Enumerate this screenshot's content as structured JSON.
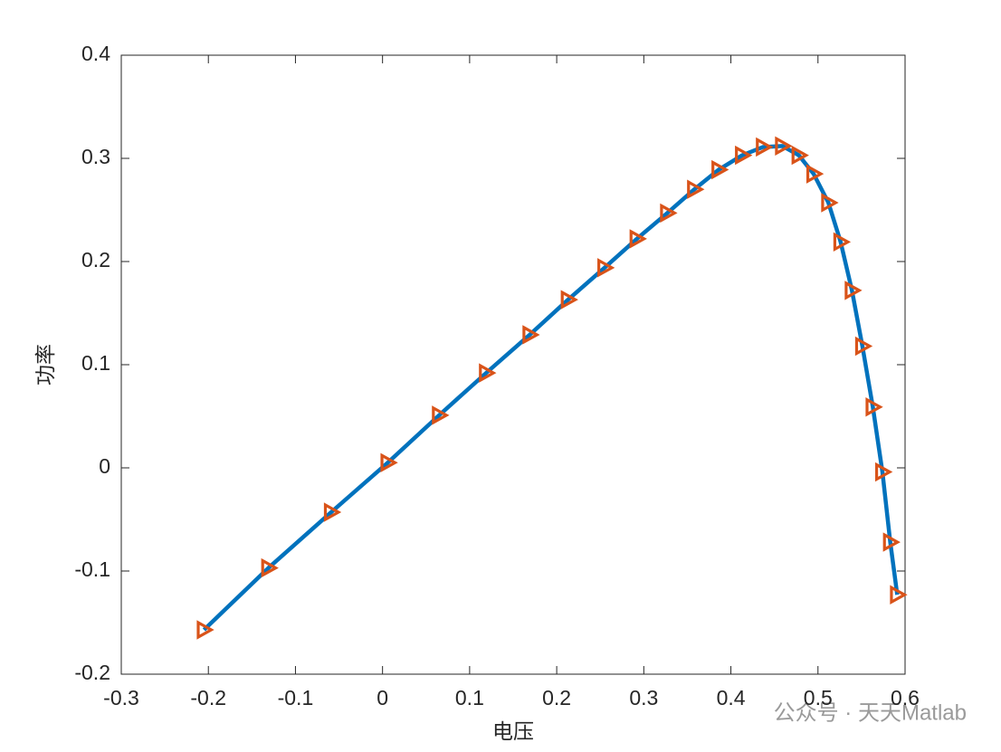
{
  "chart_data": {
    "type": "line",
    "xlabel": "电压",
    "ylabel": "功率",
    "xlim": [
      -0.3,
      0.6
    ],
    "xticks": [
      -0.3,
      -0.2,
      -0.1,
      0,
      0.1,
      0.2,
      0.3,
      0.4,
      0.5,
      0.6
    ],
    "ylim": [
      -0.2,
      0.4
    ],
    "yticks": [
      -0.2,
      -0.1,
      0,
      0.1,
      0.2,
      0.3,
      0.4
    ],
    "x": [
      -0.205,
      -0.131,
      -0.059,
      0.006,
      0.065,
      0.119,
      0.169,
      0.213,
      0.255,
      0.292,
      0.327,
      0.358,
      0.386,
      0.413,
      0.437,
      0.459,
      0.478,
      0.495,
      0.512,
      0.526,
      0.539,
      0.551,
      0.563,
      0.574,
      0.583,
      0.591
    ],
    "series": [
      {
        "color": "#0072bd",
        "marker": "triangle-right",
        "marker_color": "#d95319",
        "values": [
          -0.157,
          -0.097,
          -0.043,
          0.005,
          0.051,
          0.092,
          0.129,
          0.163,
          0.194,
          0.222,
          0.247,
          0.27,
          0.289,
          0.303,
          0.311,
          0.312,
          0.303,
          0.285,
          0.257,
          0.219,
          0.172,
          0.118,
          0.059,
          -0.004,
          -0.072,
          -0.123
        ]
      }
    ],
    "watermark": "公众号 · 天天Matlab"
  }
}
